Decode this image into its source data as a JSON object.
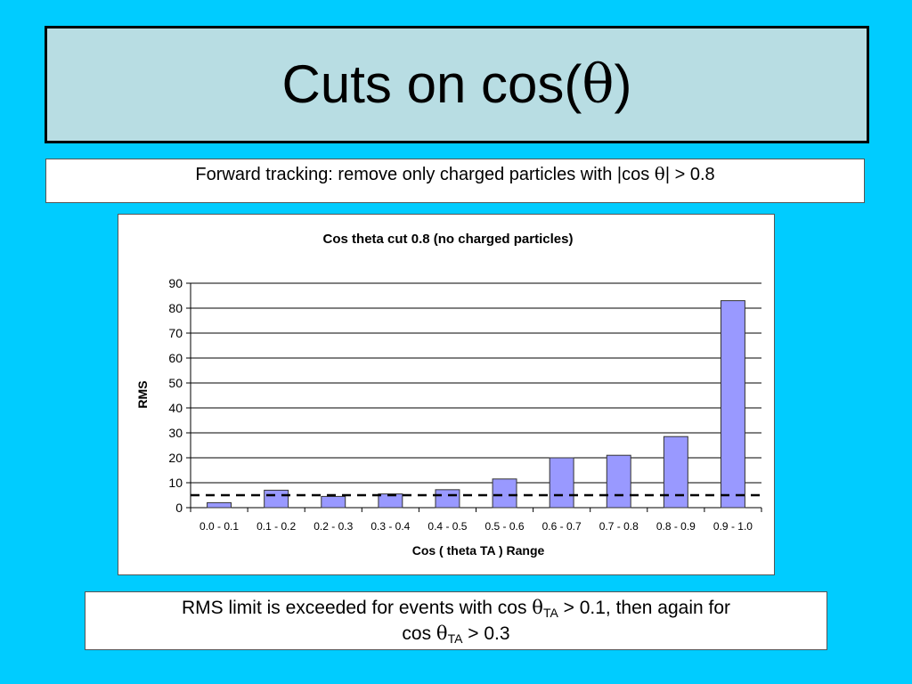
{
  "slide": {
    "title_prefix": "Cuts on cos(",
    "title_theta": "θ",
    "title_suffix": ")",
    "subtitle_prefix": "Forward tracking: remove only charged particles with |cos ",
    "subtitle_theta": "θ",
    "subtitle_suffix": "| > 0.8",
    "note": {
      "line1_prefix": "RMS limit is exceeded for events with cos ",
      "theta": "θ",
      "sub": "TA",
      "line1_suffix": " > 0.1, then again for",
      "line2_prefix": "cos ",
      "line2_suffix": " > 0.3"
    }
  },
  "chart_data": {
    "type": "bar",
    "title": "Cos theta cut 0.8 (no charged particles)",
    "xlabel": "Cos ( theta TA ) Range",
    "ylabel": "RMS",
    "categories": [
      "0.0 - 0.1",
      "0.1 - 0.2",
      "0.2 - 0.3",
      "0.3 - 0.4",
      "0.4 - 0.5",
      "0.5 - 0.6",
      "0.6 - 0.7",
      "0.7 - 0.8",
      "0.8 - 0.9",
      "0.9 - 1.0"
    ],
    "values": [
      2,
      7,
      4.5,
      5.5,
      7.2,
      11.5,
      20,
      21,
      28.5,
      83
    ],
    "ylim": [
      0,
      90
    ],
    "yticks": [
      0,
      10,
      20,
      30,
      40,
      50,
      60,
      70,
      80,
      90
    ],
    "threshold": 5,
    "grid": true,
    "legend": "none",
    "bar_color": "#9999ff",
    "threshold_color": "#000000"
  }
}
